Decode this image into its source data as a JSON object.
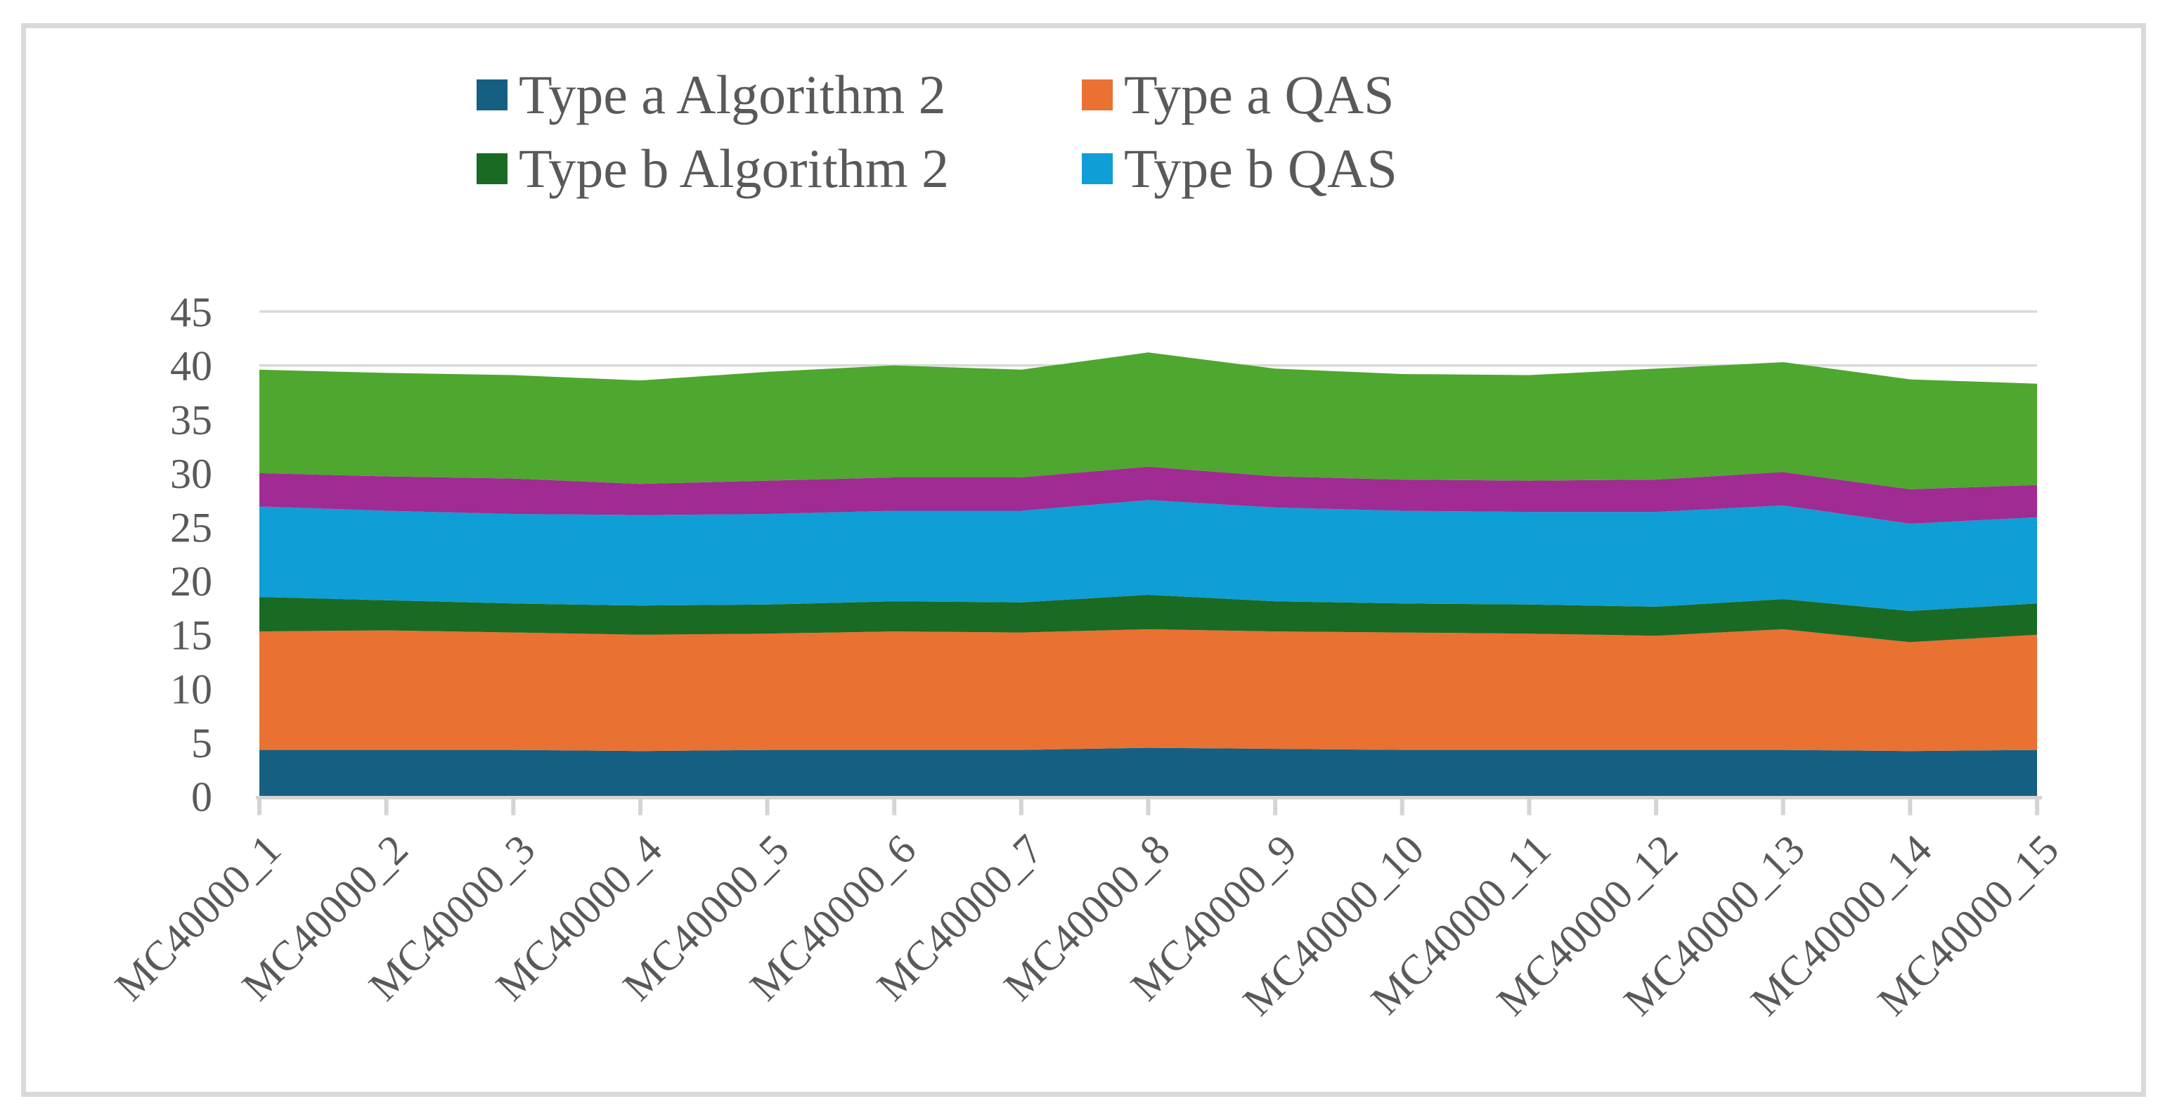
{
  "chart_data": {
    "type": "area",
    "stacked": true,
    "title": "",
    "xlabel": "",
    "ylabel": "",
    "ylim": [
      0,
      45
    ],
    "grid": true,
    "legend_position": "top",
    "categories": [
      "MC40000_1",
      "MC40000_2",
      "MC40000_3",
      "MC40000_4",
      "MC40000_5",
      "MC40000_6",
      "MC40000_7",
      "MC40000_8",
      "MC40000_9",
      "MC40000_10",
      "MC40000_11",
      "MC40000_12",
      "MC40000_13",
      "MC40000_14",
      "MC40000_15"
    ],
    "y_axis": {
      "min": 0,
      "max": 45,
      "tick_interval": 5,
      "tick_labels": [
        "0",
        "5",
        "10",
        "15",
        "20",
        "25",
        "30",
        "35",
        "40",
        "45"
      ],
      "tick_values": [
        0,
        5,
        10,
        15,
        20,
        25,
        30,
        35,
        40,
        45
      ]
    },
    "series": [
      {
        "name": "Type a Algorithm 2",
        "color": "#156082",
        "in_legend": true,
        "values": [
          4.3,
          4.3,
          4.3,
          4.2,
          4.3,
          4.3,
          4.3,
          4.5,
          4.4,
          4.3,
          4.3,
          4.3,
          4.3,
          4.2,
          4.3
        ]
      },
      {
        "name": "Type a QAS",
        "color": "#E97132",
        "in_legend": true,
        "values": [
          11.0,
          11.1,
          10.9,
          10.8,
          10.8,
          11.0,
          10.9,
          11.0,
          10.9,
          10.9,
          10.8,
          10.6,
          11.2,
          10.1,
          10.7
        ]
      },
      {
        "name": "Type b Algorithm 2",
        "color": "#196B24",
        "in_legend": true,
        "values": [
          3.2,
          2.8,
          2.7,
          2.7,
          2.7,
          2.8,
          2.8,
          3.2,
          2.8,
          2.7,
          2.7,
          2.7,
          2.8,
          2.9,
          2.9
        ]
      },
      {
        "name": "Type b QAS",
        "color": "#0F9ED5",
        "in_legend": true,
        "values": [
          8.4,
          8.3,
          8.3,
          8.4,
          8.4,
          8.4,
          8.5,
          8.8,
          8.7,
          8.6,
          8.6,
          8.8,
          8.7,
          8.1,
          8.0
        ]
      },
      {
        "name": "",
        "color": "#A02B93",
        "in_legend": false,
        "values": [
          3.1,
          3.2,
          3.3,
          2.9,
          3.1,
          3.1,
          3.1,
          3.1,
          2.9,
          2.9,
          2.9,
          3.0,
          3.1,
          3.2,
          3.0
        ]
      },
      {
        "name": "",
        "color": "#4EA72E",
        "in_legend": false,
        "values": [
          9.6,
          9.6,
          9.6,
          9.6,
          10.1,
          10.4,
          10.0,
          10.6,
          10.0,
          9.8,
          9.8,
          10.3,
          10.2,
          10.2,
          9.4
        ]
      }
    ]
  },
  "colors": {
    "gridline": "#D9D9D9",
    "axis_line": "#D4D4D4",
    "axis_label": "#595959",
    "legend_text": "#595959",
    "frame_border": "#D9D9D9",
    "background": "#FFFFFF"
  }
}
